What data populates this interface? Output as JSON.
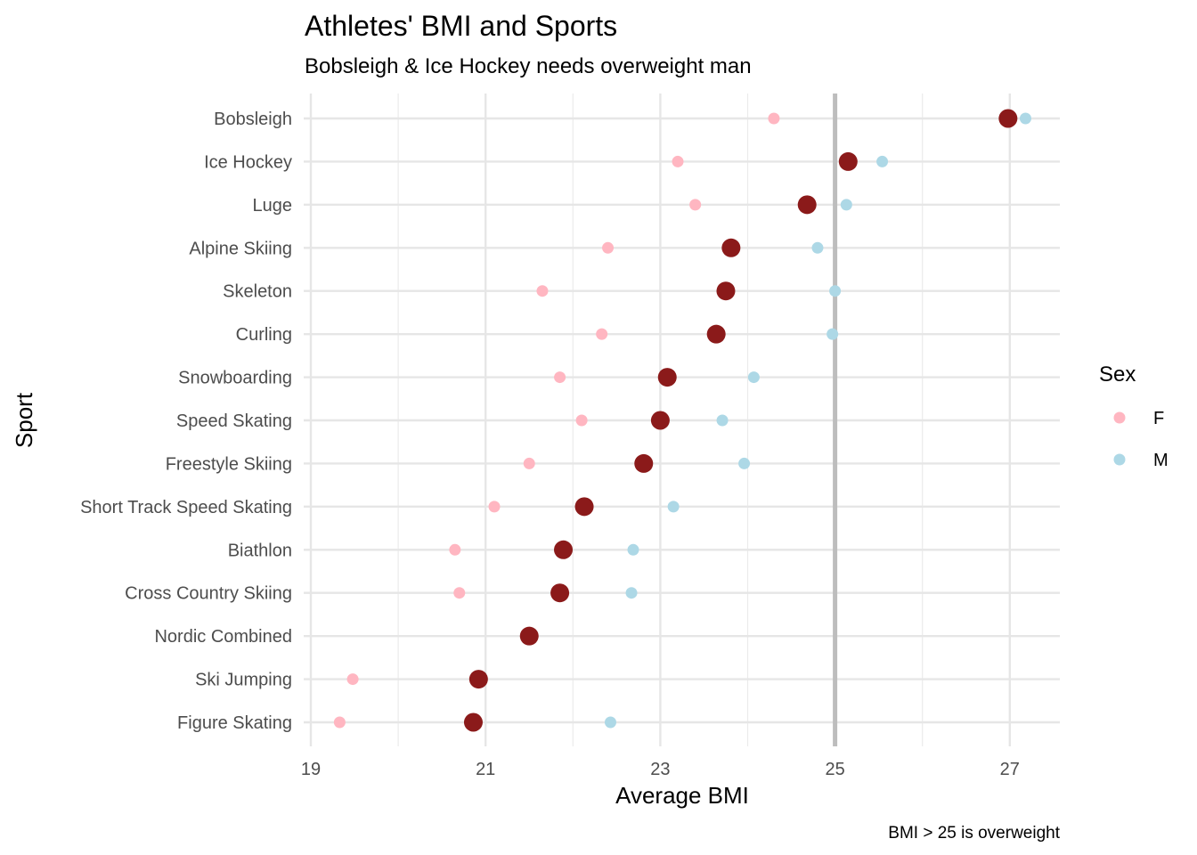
{
  "chart_data": {
    "type": "scatter",
    "title": "Athletes' BMI and Sports",
    "subtitle": "Bobsleigh & Ice Hockey needs overweight man",
    "xlabel": "Average BMI",
    "ylabel": "Sport",
    "caption": "BMI > 25 is overweight",
    "xlim": [
      19,
      27.5
    ],
    "x_ticks": [
      19,
      21,
      23,
      25,
      27
    ],
    "reference_line": {
      "x": 25,
      "color": "#bdbdbd"
    },
    "grid": true,
    "legend": {
      "title": "Sex",
      "placement": "right",
      "items": [
        {
          "label": "F",
          "color": "#ffb6c1"
        },
        {
          "label": "M",
          "color": "#add8e6"
        }
      ]
    },
    "overall_color": "#8b1a1a",
    "categories": [
      "Bobsleigh",
      "Ice Hockey",
      "Luge",
      "Alpine Skiing",
      "Skeleton",
      "Curling",
      "Snowboarding",
      "Speed Skating",
      "Freestyle Skiing",
      "Short Track Speed Skating",
      "Biathlon",
      "Cross Country Skiing",
      "Nordic Combined",
      "Ski Jumping",
      "Figure Skating"
    ],
    "series": [
      {
        "name": "F",
        "color": "#ffb6c1",
        "values": [
          24.3,
          23.2,
          23.4,
          22.4,
          21.65,
          22.33,
          21.85,
          22.1,
          21.5,
          21.1,
          20.65,
          20.7,
          null,
          19.48,
          19.33
        ]
      },
      {
        "name": "M",
        "color": "#add8e6",
        "values": [
          27.18,
          25.54,
          25.13,
          24.8,
          25.0,
          24.97,
          24.07,
          23.71,
          23.96,
          23.15,
          22.69,
          22.67,
          null,
          null,
          22.43
        ]
      },
      {
        "overall": true,
        "color": "#8b1a1a",
        "values": [
          26.98,
          25.15,
          24.68,
          23.81,
          23.75,
          23.64,
          23.08,
          23.0,
          22.81,
          22.13,
          21.89,
          21.85,
          21.5,
          20.92,
          20.86
        ]
      }
    ]
  }
}
